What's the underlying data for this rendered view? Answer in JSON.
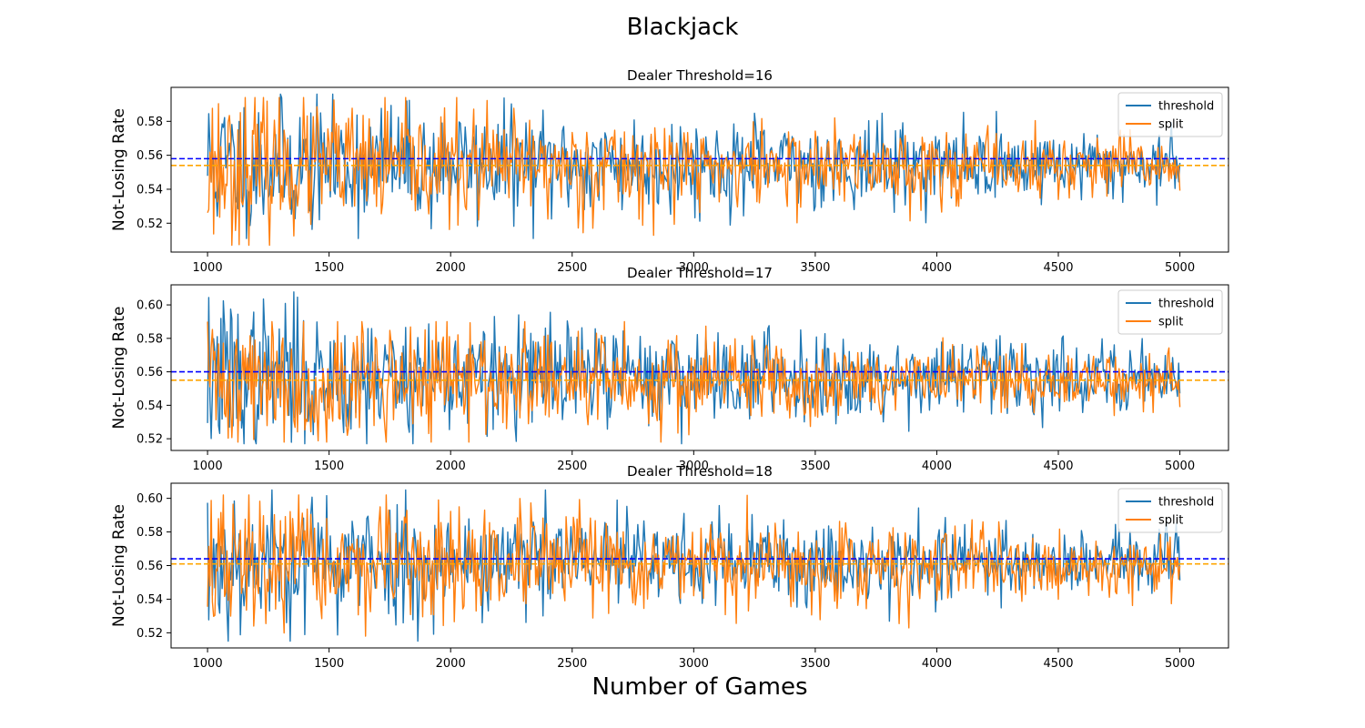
{
  "figure": {
    "suptitle": "Blackjack",
    "xlabel": "Number of Games"
  },
  "colors": {
    "threshold": "#1f77b4",
    "split": "#ff7f0e",
    "threshold_mean": "#0000ff",
    "split_mean": "#ffa500"
  },
  "chart_data": [
    {
      "type": "line",
      "title": "Dealer Threshold=16",
      "ylabel": "Not-Losing Rate",
      "xlim": [
        850,
        5200
      ],
      "ylim": [
        0.503,
        0.6
      ],
      "xticks": [
        1000,
        1500,
        2000,
        2500,
        3000,
        3500,
        4000,
        4500,
        5000
      ],
      "yticks": [
        0.52,
        0.54,
        0.56,
        0.58
      ],
      "legend": {
        "placement": "upper-right",
        "entries": [
          "threshold",
          "split"
        ]
      },
      "series": [
        {
          "name": "threshold",
          "x_range": [
            1000,
            5000
          ],
          "step": 5,
          "mean": 0.5545,
          "spread_start": 0.028,
          "spread_end": 0.011,
          "max": 0.596,
          "min": 0.511,
          "seed": 11
        },
        {
          "name": "split",
          "x_range": [
            1000,
            5000
          ],
          "step": 5,
          "mean": 0.5535,
          "spread_start": 0.029,
          "spread_end": 0.01,
          "max": 0.594,
          "min": 0.507,
          "seed": 23
        }
      ],
      "hlines": [
        {
          "y": 0.558,
          "color_key": "threshold_mean",
          "style": "dashed"
        },
        {
          "y": 0.554,
          "color_key": "split_mean",
          "style": "dashed"
        }
      ]
    },
    {
      "type": "line",
      "title": "Dealer Threshold=17",
      "ylabel": "Not-Losing Rate",
      "xlim": [
        850,
        5200
      ],
      "ylim": [
        0.513,
        0.612
      ],
      "xticks": [
        1000,
        1500,
        2000,
        2500,
        3000,
        3500,
        4000,
        4500,
        5000
      ],
      "yticks": [
        0.52,
        0.54,
        0.56,
        0.58,
        0.6
      ],
      "legend": {
        "placement": "upper-right",
        "entries": [
          "threshold",
          "split"
        ]
      },
      "series": [
        {
          "name": "threshold",
          "x_range": [
            1000,
            5000
          ],
          "step": 5,
          "mean": 0.5575,
          "spread_start": 0.03,
          "spread_end": 0.011,
          "max": 0.608,
          "min": 0.517,
          "seed": 37
        },
        {
          "name": "split",
          "x_range": [
            1000,
            5000
          ],
          "step": 5,
          "mean": 0.5545,
          "spread_start": 0.029,
          "spread_end": 0.01,
          "max": 0.59,
          "min": 0.518,
          "seed": 41
        }
      ],
      "hlines": [
        {
          "y": 0.56,
          "color_key": "threshold_mean",
          "style": "dashed"
        },
        {
          "y": 0.555,
          "color_key": "split_mean",
          "style": "dashed"
        }
      ]
    },
    {
      "type": "line",
      "title": "Dealer Threshold=18",
      "ylabel": "Not-Losing Rate",
      "xlim": [
        850,
        5200
      ],
      "ylim": [
        0.511,
        0.609
      ],
      "xticks": [
        1000,
        1500,
        2000,
        2500,
        3000,
        3500,
        4000,
        4500,
        5000
      ],
      "yticks": [
        0.52,
        0.54,
        0.56,
        0.58,
        0.6
      ],
      "legend": {
        "placement": "upper-right",
        "entries": [
          "threshold",
          "split"
        ]
      },
      "series": [
        {
          "name": "threshold",
          "x_range": [
            1000,
            5000
          ],
          "step": 5,
          "mean": 0.5625,
          "spread_start": 0.029,
          "spread_end": 0.011,
          "max": 0.605,
          "min": 0.515,
          "seed": 53
        },
        {
          "name": "split",
          "x_range": [
            1000,
            5000
          ],
          "step": 5,
          "mean": 0.5595,
          "spread_start": 0.028,
          "spread_end": 0.01,
          "max": 0.602,
          "min": 0.518,
          "seed": 67
        }
      ],
      "hlines": [
        {
          "y": 0.564,
          "color_key": "threshold_mean",
          "style": "dashed"
        },
        {
          "y": 0.561,
          "color_key": "split_mean",
          "style": "dashed"
        }
      ]
    }
  ]
}
